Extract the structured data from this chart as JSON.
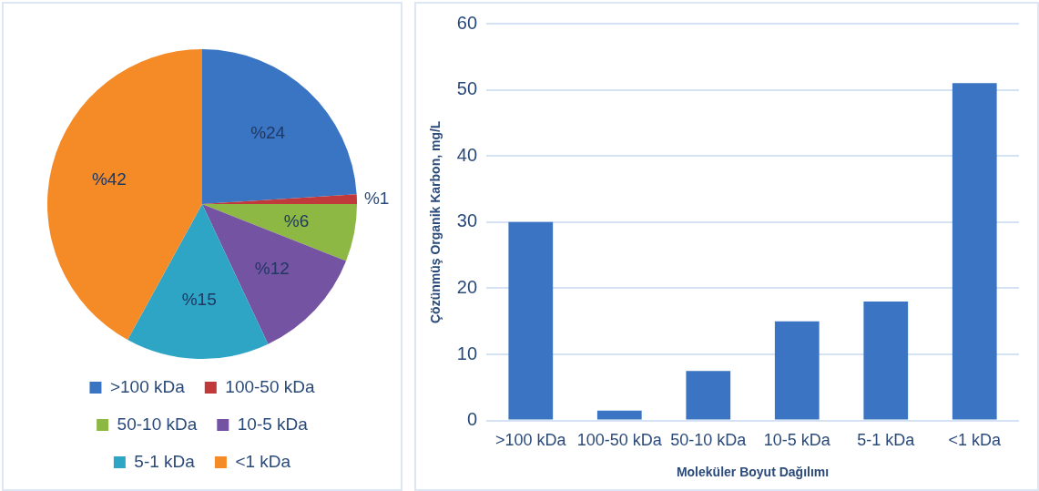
{
  "chart_data": [
    {
      "type": "pie",
      "categories": [
        ">100 kDa",
        "100-50 kDa",
        "50-10 kDa",
        "10-5 kDa",
        "5-1 kDa",
        "<1 kDa"
      ],
      "values": [
        24,
        1,
        6,
        12,
        15,
        42
      ],
      "colors": [
        "#3a75c4",
        "#c0393b",
        "#8db843",
        "#7553a3",
        "#2ea5c4",
        "#f58b26"
      ],
      "value_labels": [
        "%24",
        "%1",
        "%6",
        "%12",
        "%15",
        "%42"
      ],
      "legend": "bottom"
    },
    {
      "type": "bar",
      "categories": [
        ">100 kDa",
        "100-50 kDa",
        "50-10 kDa",
        "10-5 kDa",
        "5-1 kDa",
        "<1 kDa"
      ],
      "values": [
        30,
        1.5,
        7.5,
        15,
        18,
        51
      ],
      "color": "#3a74c2",
      "xlabel": "Moleküler Boyut Dağılımı",
      "ylabel": "Çözünmüş Organik Karbon, mg/L",
      "ylim": [
        0,
        60
      ],
      "yticks": [
        0,
        10,
        20,
        30,
        40,
        50,
        60
      ],
      "grid": "y"
    }
  ]
}
